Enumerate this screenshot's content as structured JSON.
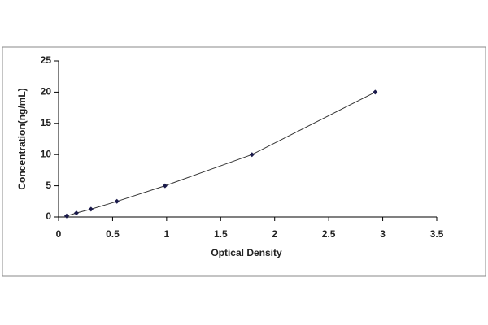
{
  "chart_data": {
    "type": "scatter",
    "line": true,
    "x_label": "Optical Density",
    "y_label": "Concentration(ng/mL)",
    "x": [
      0.075,
      0.165,
      0.3,
      0.54,
      0.985,
      1.79,
      2.93
    ],
    "values": [
      0.16,
      0.63,
      1.25,
      2.5,
      5,
      10,
      20
    ],
    "color": "#1a1a4a",
    "line_color": "#333333",
    "xlim": [
      0,
      3.5
    ],
    "xticks": [
      0,
      0.5,
      1,
      1.5,
      2,
      2.5,
      3,
      3.5
    ],
    "ylim": [
      0,
      25
    ],
    "yticks": [
      0,
      5,
      10,
      15,
      20,
      25
    ],
    "grid": false
  }
}
